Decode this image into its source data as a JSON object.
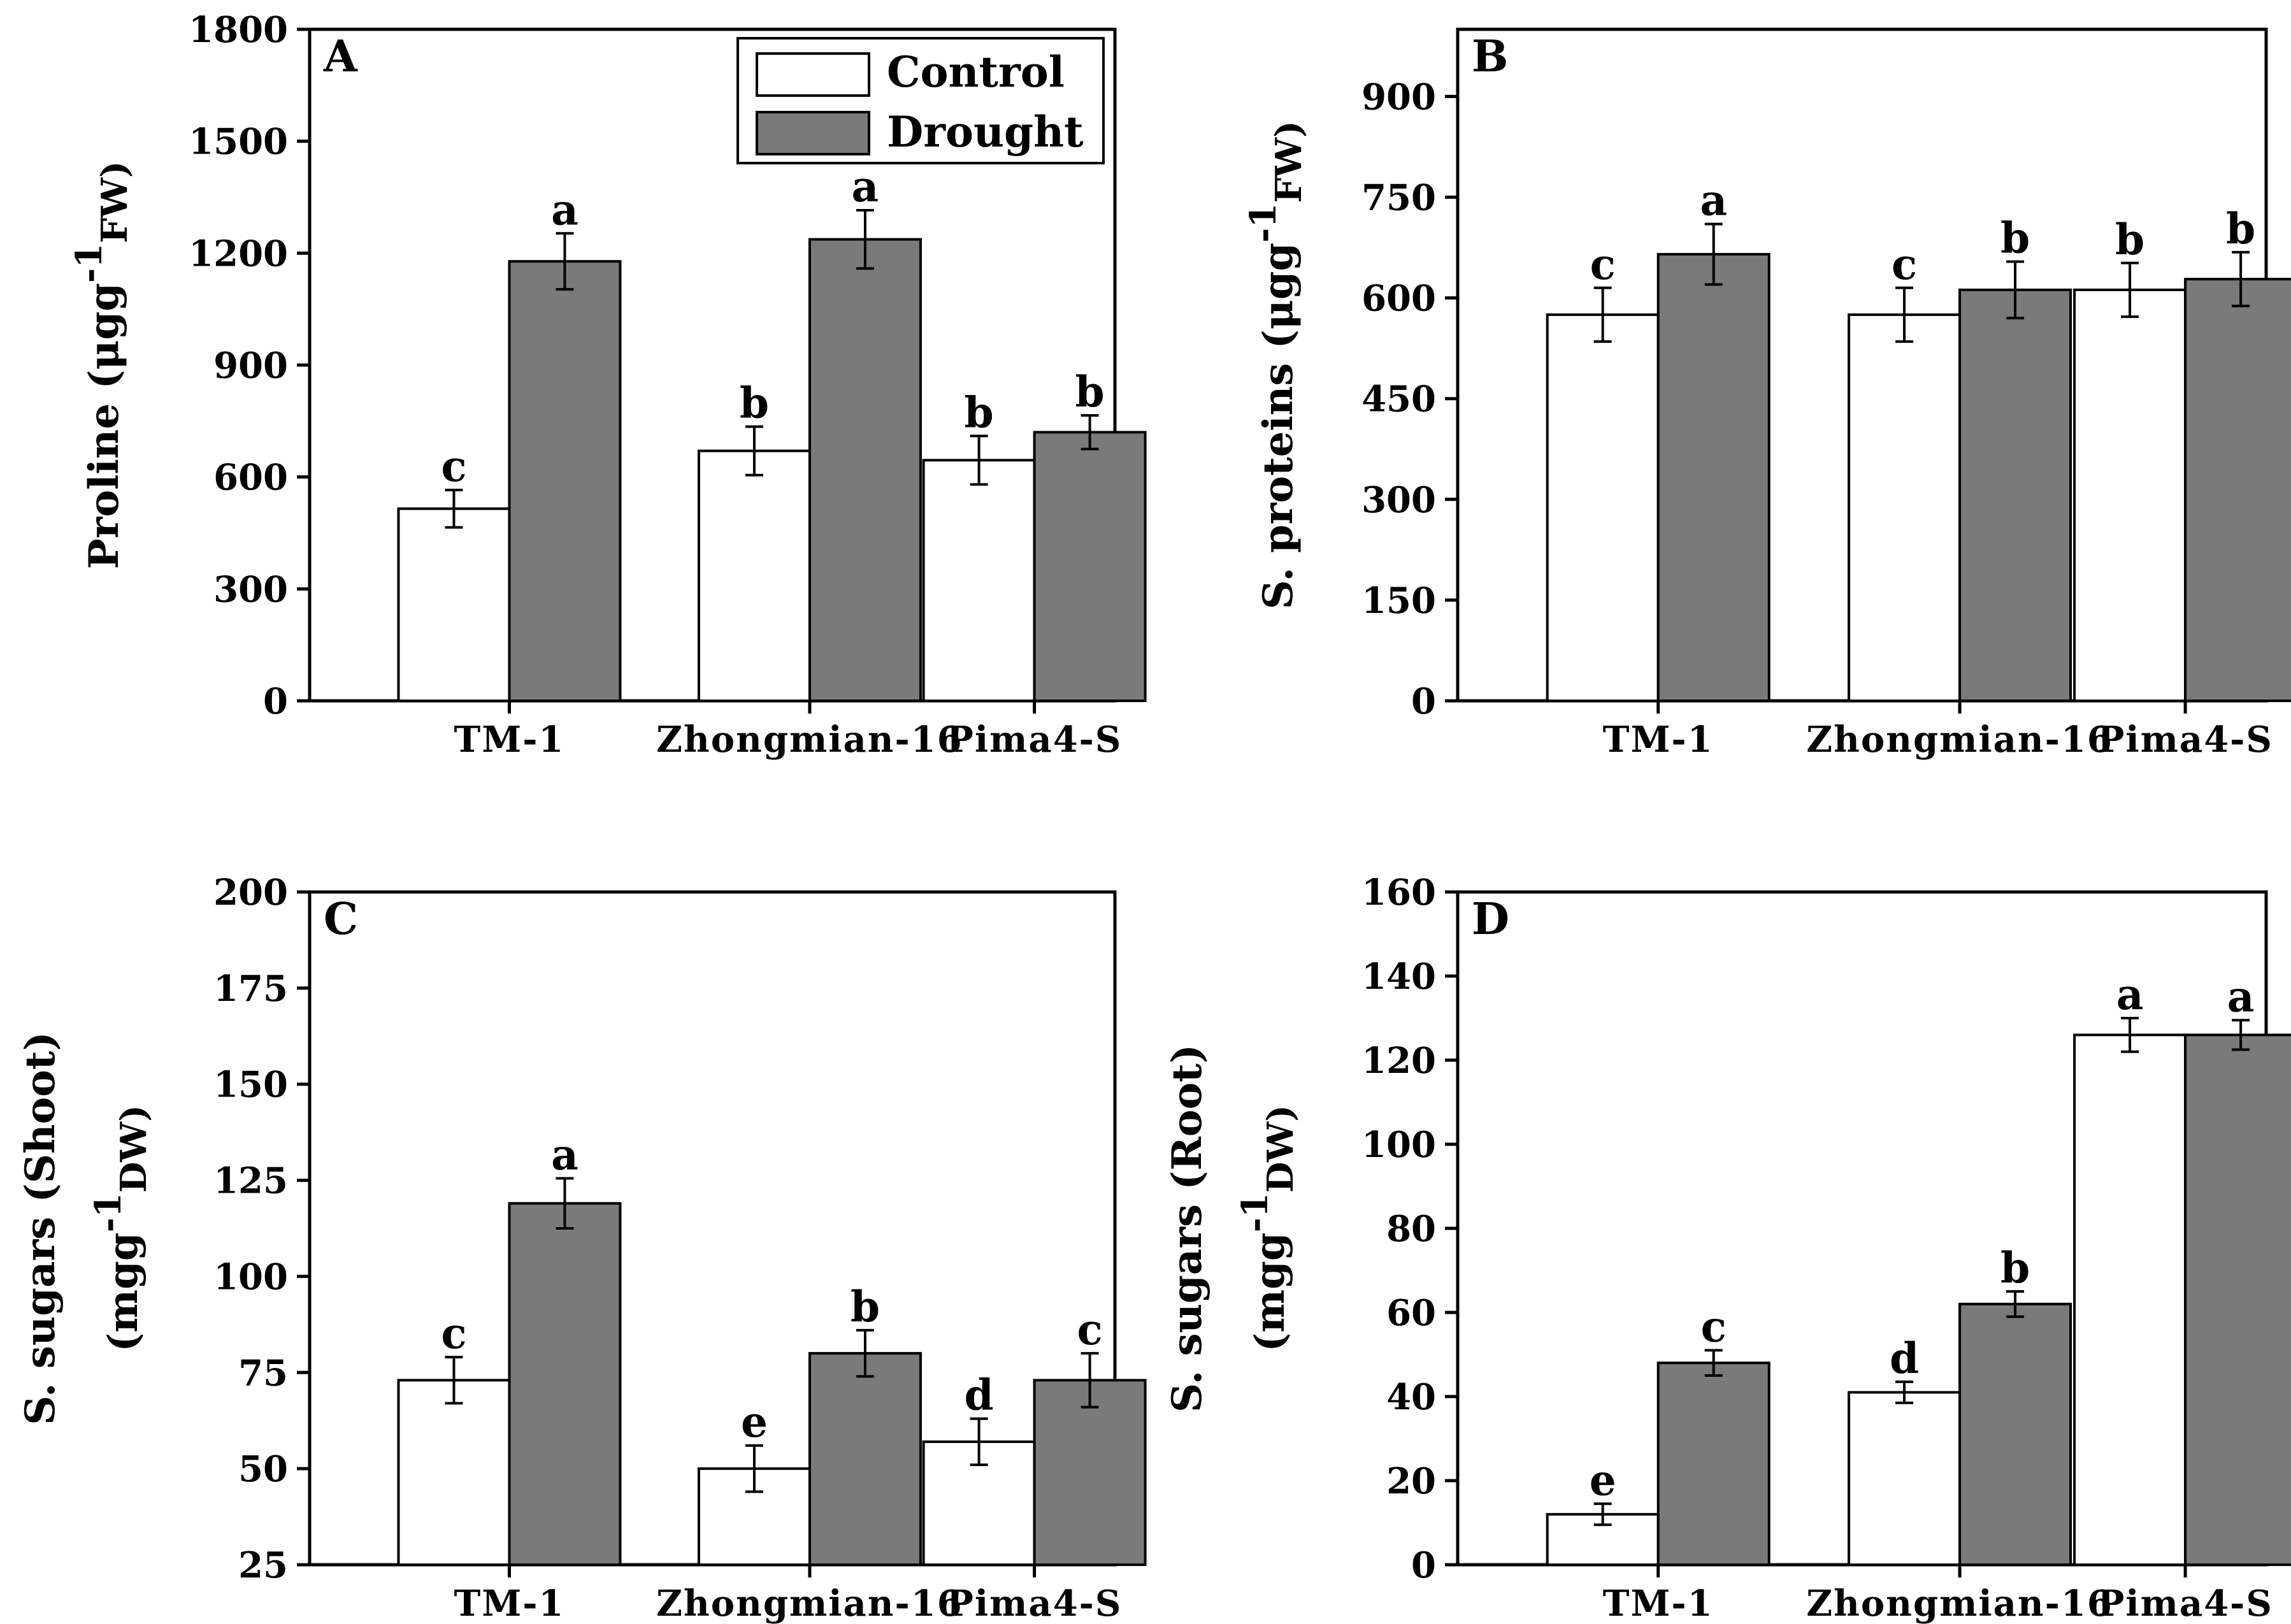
{
  "legend": {
    "control": "Control",
    "drought": "Drought"
  },
  "colors": {
    "control": "#ffffff",
    "drought": "#7a7a7a",
    "stroke": "#000000"
  },
  "chart_data": [
    {
      "panel": "A",
      "type": "bar",
      "ylabel": "Proline (μgg",
      "ylabel_sup": "-1",
      "ylabel_sub": "FW)",
      "ylabel_close": "",
      "ylim": [
        0,
        1800
      ],
      "ticks": [
        "0",
        "300",
        "600",
        "900",
        "1200",
        "1500",
        "1800"
      ],
      "categories": [
        "TM-1",
        "Zhongmian-16",
        "Pima4-S"
      ],
      "series": [
        {
          "name": "Control",
          "values": [
            515,
            670,
            645
          ],
          "errors": [
            50,
            65,
            65
          ],
          "letters": [
            "c",
            "b",
            "b"
          ]
        },
        {
          "name": "Drought",
          "values": [
            1178,
            1237,
            720
          ],
          "errors": [
            75,
            78,
            45
          ],
          "letters": [
            "a",
            "a",
            "b"
          ]
        }
      ],
      "legend": "top-right"
    },
    {
      "panel": "B",
      "type": "bar",
      "ylabel": "S. proteins (μgg",
      "ylabel_sup": "-1",
      "ylabel_sub": "FW)",
      "ylabel_close": "",
      "ylim": [
        0,
        1000
      ],
      "ticks": [
        "0",
        "150",
        "300",
        "450",
        "600",
        "750",
        "900"
      ],
      "categories": [
        "TM-1",
        "Zhongmian-16",
        "Pima4-S"
      ],
      "series": [
        {
          "name": "Control",
          "values": [
            575,
            575,
            612
          ],
          "errors": [
            40,
            40,
            40
          ],
          "letters": [
            "c",
            "c",
            "b"
          ]
        },
        {
          "name": "Drought",
          "values": [
            665,
            612,
            628
          ],
          "errors": [
            45,
            42,
            40
          ],
          "letters": [
            "a",
            "b",
            "b"
          ]
        }
      ]
    },
    {
      "panel": "C",
      "type": "bar",
      "ylabel_line1": "S. sugars (Shoot)",
      "ylabel": "(mgg",
      "ylabel_sup": "-1",
      "ylabel_sub": "DW)",
      "ylabel_close": "",
      "ylim": [
        25,
        200
      ],
      "ticks": [
        "25",
        "50",
        "75",
        "100",
        "125",
        "150",
        "175",
        "200"
      ],
      "categories": [
        "TM-1",
        "Zhongmian-16",
        "Pima4-S"
      ],
      "series": [
        {
          "name": "Control",
          "values": [
            73,
            50,
            57
          ],
          "errors": [
            6,
            6,
            6
          ],
          "letters": [
            "c",
            "e",
            "d"
          ]
        },
        {
          "name": "Drought",
          "values": [
            119,
            80,
            73
          ],
          "errors": [
            6.5,
            6,
            7
          ],
          "letters": [
            "a",
            "b",
            "c"
          ]
        }
      ]
    },
    {
      "panel": "D",
      "type": "bar",
      "ylabel_line1": "S. sugars (Root)",
      "ylabel": "(mgg",
      "ylabel_sup": "-1",
      "ylabel_sub": "DW)",
      "ylabel_close": "",
      "ylim": [
        0,
        160
      ],
      "ticks": [
        "0",
        "20",
        "40",
        "60",
        "80",
        "100",
        "120",
        "140",
        "160"
      ],
      "categories": [
        "TM-1",
        "Zhongmian-16",
        "Pima4-S"
      ],
      "series": [
        {
          "name": "Control",
          "values": [
            12,
            41,
            126
          ],
          "errors": [
            2.5,
            2.5,
            4
          ],
          "letters": [
            "e",
            "d",
            "a"
          ]
        },
        {
          "name": "Drought",
          "values": [
            48,
            62,
            126
          ],
          "errors": [
            3,
            3,
            3.5
          ],
          "letters": [
            "c",
            "b",
            "a"
          ]
        }
      ]
    }
  ]
}
